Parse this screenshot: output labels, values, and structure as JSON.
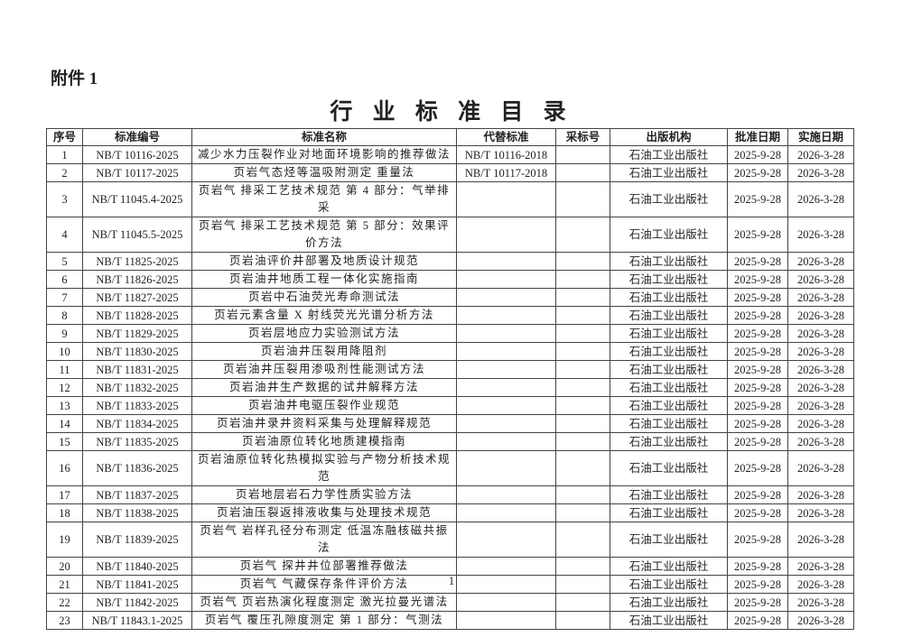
{
  "attachment_label": "附件 1",
  "title": "行 业 标 准 目 录",
  "page_number": "1",
  "table": {
    "headers": [
      "序号",
      "标准编号",
      "标准名称",
      "代替标准",
      "采标号",
      "出版机构",
      "批准日期",
      "实施日期"
    ],
    "rows": [
      [
        "1",
        "NB/T 10116-2025",
        "减少水力压裂作业对地面环境影响的推荐做法",
        "NB/T 10116-2018",
        "",
        "石油工业出版社",
        "2025-9-28",
        "2026-3-28"
      ],
      [
        "2",
        "NB/T 10117-2025",
        "页岩气态烃等温吸附测定 重量法",
        "NB/T 10117-2018",
        "",
        "石油工业出版社",
        "2025-9-28",
        "2026-3-28"
      ],
      [
        "3",
        "NB/T 11045.4-2025",
        "页岩气 排采工艺技术规范 第 4 部分：气举排采",
        "",
        "",
        "石油工业出版社",
        "2025-9-28",
        "2026-3-28"
      ],
      [
        "4",
        "NB/T 11045.5-2025",
        "页岩气 排采工艺技术规范 第 5 部分：效果评价方法",
        "",
        "",
        "石油工业出版社",
        "2025-9-28",
        "2026-3-28"
      ],
      [
        "5",
        "NB/T 11825-2025",
        "页岩油评价井部署及地质设计规范",
        "",
        "",
        "石油工业出版社",
        "2025-9-28",
        "2026-3-28"
      ],
      [
        "6",
        "NB/T 11826-2025",
        "页岩油井地质工程一体化实施指南",
        "",
        "",
        "石油工业出版社",
        "2025-9-28",
        "2026-3-28"
      ],
      [
        "7",
        "NB/T 11827-2025",
        "页岩中石油荧光寿命测试法",
        "",
        "",
        "石油工业出版社",
        "2025-9-28",
        "2026-3-28"
      ],
      [
        "8",
        "NB/T 11828-2025",
        "页岩元素含量 X 射线荧光光谱分析方法",
        "",
        "",
        "石油工业出版社",
        "2025-9-28",
        "2026-3-28"
      ],
      [
        "9",
        "NB/T 11829-2025",
        "页岩层地应力实验测试方法",
        "",
        "",
        "石油工业出版社",
        "2025-9-28",
        "2026-3-28"
      ],
      [
        "10",
        "NB/T 11830-2025",
        "页岩油井压裂用降阻剂",
        "",
        "",
        "石油工业出版社",
        "2025-9-28",
        "2026-3-28"
      ],
      [
        "11",
        "NB/T 11831-2025",
        "页岩油井压裂用渗吸剂性能测试方法",
        "",
        "",
        "石油工业出版社",
        "2025-9-28",
        "2026-3-28"
      ],
      [
        "12",
        "NB/T 11832-2025",
        "页岩油井生产数据的试井解释方法",
        "",
        "",
        "石油工业出版社",
        "2025-9-28",
        "2026-3-28"
      ],
      [
        "13",
        "NB/T 11833-2025",
        "页岩油井电驱压裂作业规范",
        "",
        "",
        "石油工业出版社",
        "2025-9-28",
        "2026-3-28"
      ],
      [
        "14",
        "NB/T 11834-2025",
        "页岩油井录井资料采集与处理解释规范",
        "",
        "",
        "石油工业出版社",
        "2025-9-28",
        "2026-3-28"
      ],
      [
        "15",
        "NB/T 11835-2025",
        "页岩油原位转化地质建模指南",
        "",
        "",
        "石油工业出版社",
        "2025-9-28",
        "2026-3-28"
      ],
      [
        "16",
        "NB/T 11836-2025",
        "页岩油原位转化热模拟实验与产物分析技术规范",
        "",
        "",
        "石油工业出版社",
        "2025-9-28",
        "2026-3-28"
      ],
      [
        "17",
        "NB/T 11837-2025",
        "页岩地层岩石力学性质实验方法",
        "",
        "",
        "石油工业出版社",
        "2025-9-28",
        "2026-3-28"
      ],
      [
        "18",
        "NB/T 11838-2025",
        "页岩油压裂返排液收集与处理技术规范",
        "",
        "",
        "石油工业出版社",
        "2025-9-28",
        "2026-3-28"
      ],
      [
        "19",
        "NB/T 11839-2025",
        "页岩气 岩样孔径分布测定 低温冻融核磁共振法",
        "",
        "",
        "石油工业出版社",
        "2025-9-28",
        "2026-3-28"
      ],
      [
        "20",
        "NB/T 11840-2025",
        "页岩气 探井井位部署推荐做法",
        "",
        "",
        "石油工业出版社",
        "2025-9-28",
        "2026-3-28"
      ],
      [
        "21",
        "NB/T 11841-2025",
        "页岩气 气藏保存条件评价方法",
        "",
        "",
        "石油工业出版社",
        "2025-9-28",
        "2026-3-28"
      ],
      [
        "22",
        "NB/T 11842-2025",
        "页岩气 页岩热演化程度测定 激光拉曼光谱法",
        "",
        "",
        "石油工业出版社",
        "2025-9-28",
        "2026-3-28"
      ],
      [
        "23",
        "NB/T 11843.1-2025",
        "页岩气 覆压孔隙度测定 第 1 部分：气测法",
        "",
        "",
        "石油工业出版社",
        "2025-9-28",
        "2026-3-28"
      ]
    ]
  }
}
